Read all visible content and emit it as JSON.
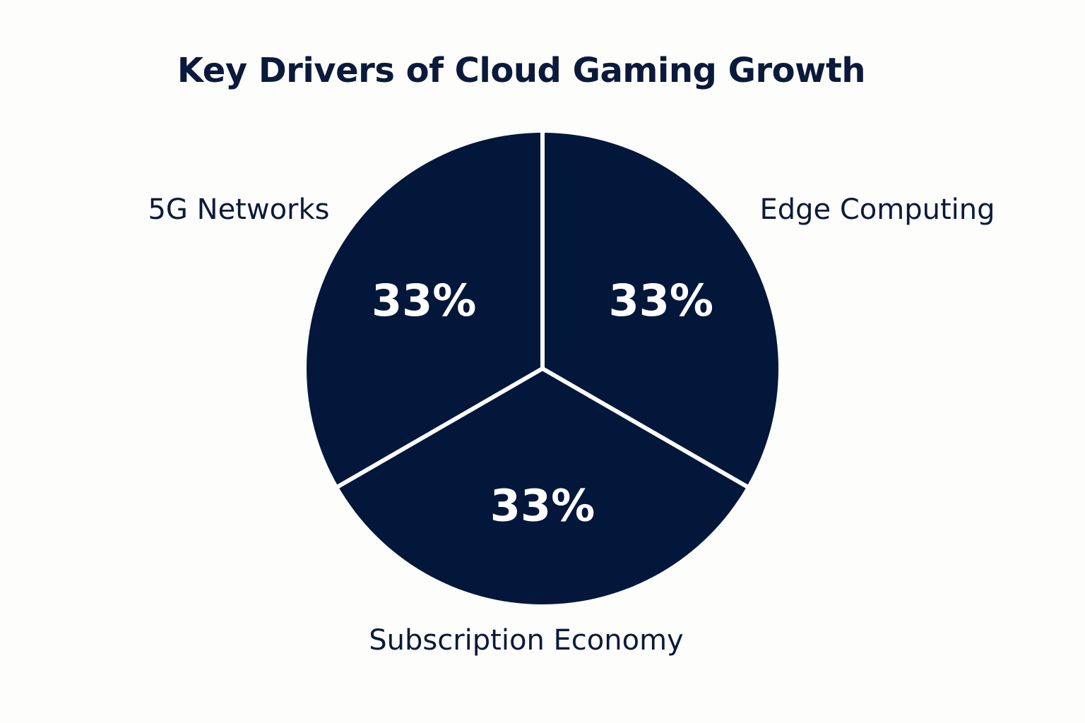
{
  "chart_data": {
    "type": "pie",
    "title": "Key Drivers of Cloud Gaming Growth",
    "categories": [
      "5G Networks",
      "Edge Computing",
      "Subscription Economy"
    ],
    "values": [
      33,
      33,
      33
    ],
    "value_labels": [
      "33%",
      "33%",
      "33%"
    ],
    "legend": "none",
    "colors": {
      "slice": "#03173b",
      "separator": "#ffffff",
      "text": "#0b1a3a",
      "background": "#fdfdfc"
    }
  }
}
